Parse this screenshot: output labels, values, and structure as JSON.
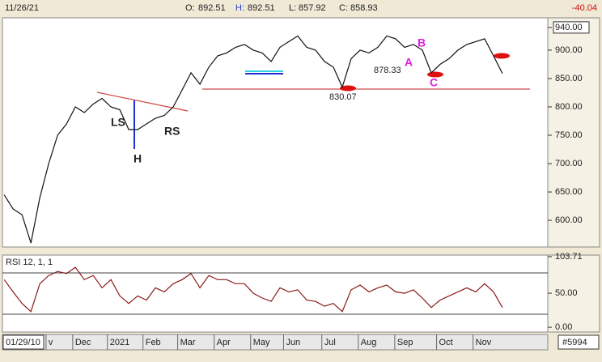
{
  "header": {
    "date": "11/26/21",
    "open_label": "O:",
    "open": "892.51",
    "high_label": "H:",
    "high": "892.51",
    "low_label": "L:",
    "low": "857.92",
    "close_label": "C:",
    "close": "858.93",
    "change": "-40.04"
  },
  "footer": {
    "start": "01/29/10",
    "id": "#5994"
  },
  "chart_data": [
    {
      "type": "line",
      "series": [
        {
          "name": "Price",
          "color": "#111111",
          "values": [
            645,
            620,
            610,
            560,
            640,
            700,
            750,
            770,
            800,
            790,
            805,
            815,
            800,
            795,
            760,
            760,
            770,
            780,
            785,
            800,
            830,
            860,
            840,
            870,
            890,
            895,
            905,
            910,
            900,
            895,
            880,
            905,
            915,
            925,
            905,
            900,
            880,
            870,
            835,
            885,
            900,
            895,
            905,
            925,
            920,
            905,
            910,
            900,
            860,
            875,
            885,
            900,
            910,
            915,
            920,
            890,
            858.93
          ]
        }
      ],
      "xlim": [
        -0.2,
        61.1
      ],
      "xticks": [
        {
          "value": 4.7,
          "label": "v"
        },
        {
          "value": 7.7,
          "label": "Dec"
        },
        {
          "value": 11.6,
          "label": "2021"
        },
        {
          "value": 15.6,
          "label": "Feb"
        },
        {
          "value": 19.5,
          "label": "Mar"
        },
        {
          "value": 23.6,
          "label": "Apr"
        },
        {
          "value": 27.7,
          "label": "May"
        },
        {
          "value": 31.4,
          "label": "Jun"
        },
        {
          "value": 35.7,
          "label": "Jul"
        },
        {
          "value": 39.8,
          "label": "Aug"
        },
        {
          "value": 43.9,
          "label": "Sep"
        },
        {
          "value": 48.6,
          "label": "Oct"
        },
        {
          "value": 52.7,
          "label": "Nov"
        }
      ],
      "ylim": [
        553,
        957
      ],
      "yticks": [
        {
          "value": 940,
          "label": "940.00"
        },
        {
          "value": 900,
          "label": "900.00"
        },
        {
          "value": 850,
          "label": "850.00"
        },
        {
          "value": 800,
          "label": "800.00"
        },
        {
          "value": 750,
          "label": "750.00"
        },
        {
          "value": 700,
          "label": "700.00"
        },
        {
          "value": 650,
          "label": "650.00"
        },
        {
          "value": 600,
          "label": "600.00"
        }
      ],
      "annotations": [
        "LS",
        "H",
        "RS",
        "830.07",
        "878.33",
        "A",
        "B",
        "C"
      ]
    },
    {
      "type": "line",
      "title": "RSI 12, 1, 1",
      "series": [
        {
          "name": "RSI",
          "color": "#8b1a1a",
          "values": [
            70,
            52,
            35,
            23,
            64,
            76,
            82,
            79,
            88,
            70,
            76,
            58,
            70,
            46,
            35,
            46,
            40,
            58,
            52,
            64,
            70,
            79,
            58,
            76,
            70,
            70,
            64,
            64,
            50,
            43,
            38,
            58,
            52,
            55,
            40,
            38,
            31,
            35,
            23,
            55,
            62,
            52,
            58,
            62,
            52,
            50,
            55,
            43,
            29,
            40,
            46,
            52,
            58,
            52,
            64,
            52,
            29
          ]
        }
      ],
      "ylim": [
        -7,
        106
      ],
      "yticks": [
        103.71,
        {
          "value": 50,
          "label": "50.00"
        },
        {
          "value": 0,
          "label": "0.00"
        }
      ]
    }
  ]
}
